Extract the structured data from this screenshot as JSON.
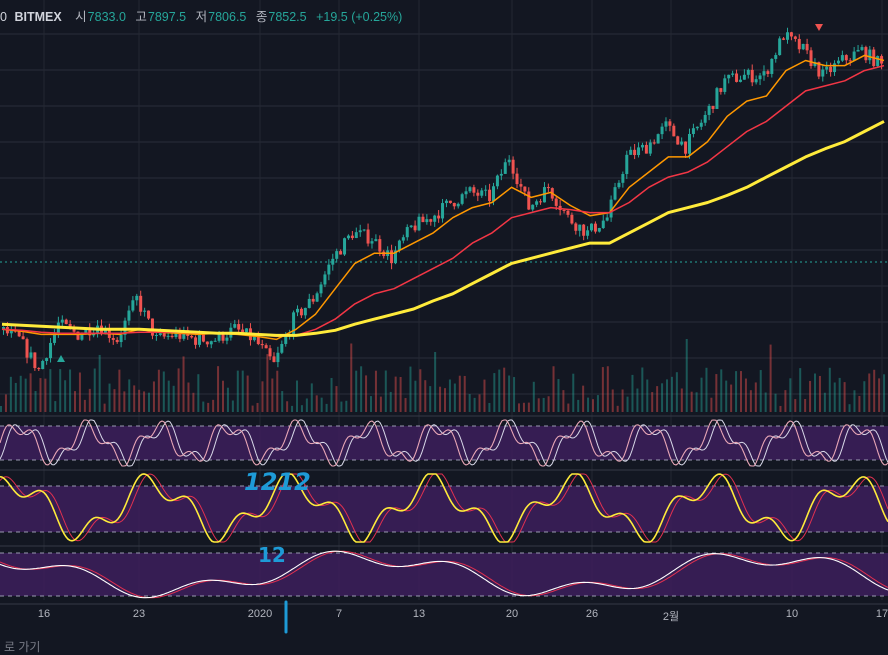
{
  "header": {
    "prefix": "0",
    "exchange": "BITMEX",
    "open_label": "시",
    "open": "7833.0",
    "high_label": "고",
    "high": "7897.5",
    "low_label": "저",
    "low": "7806.5",
    "close_label": "종",
    "close": "7852.5",
    "change": "+19.5 (+0.25%)"
  },
  "x_ticks": [
    "16",
    "23",
    "2020",
    "7",
    "13",
    "20",
    "26",
    "2월",
    "10",
    "17"
  ],
  "footer_text": "로 가기",
  "annotations": {
    "top": "1212",
    "mid": "12"
  },
  "colors": {
    "background": "#131722",
    "up": "#26a69a",
    "down": "#ef5350",
    "ma_fast": "#ff9800",
    "ma_mid": "#f23645",
    "ma_slow": "#ffeb3b",
    "oscillator_band": "#3d1f5c",
    "annotation": "#1e9bd7"
  },
  "chart_data": {
    "type": "candlestick",
    "series": [
      {
        "name": "",
        "close": [
          7300,
          7200,
          6900,
          7350,
          7250,
          7350,
          7200,
          7600,
          7200,
          7250,
          7200,
          7200,
          7300,
          7200,
          6950,
          7400,
          7600,
          8000,
          8250,
          8200,
          8000,
          8300,
          8400,
          8550,
          8650,
          8600,
          9000,
          8500,
          8700,
          8400,
          8250,
          8400,
          9000,
          9100,
          9300,
          9100,
          9400,
          9750,
          9800,
          9800,
          10200,
          10050,
          9800,
          9950,
          10050,
          9900
        ]
      },
      {
        "name": "",
        "values": [
          7300,
          7280,
          7250,
          7250,
          7250,
          7260,
          7250,
          7300,
          7270,
          7260,
          7250,
          7260,
          7250,
          7230,
          7200,
          7300,
          7450,
          7700,
          7950,
          8050,
          8050,
          8150,
          8250,
          8400,
          8500,
          8550,
          8700,
          8600,
          8650,
          8520,
          8420,
          8450,
          8700,
          8850,
          9000,
          9000,
          9150,
          9400,
          9550,
          9600,
          9850,
          9950,
          9900,
          9900,
          10000,
          9950
        ]
      },
      {
        "name": "",
        "values": [
          7300,
          7290,
          7270,
          7260,
          7260,
          7260,
          7260,
          7270,
          7270,
          7270,
          7260,
          7260,
          7260,
          7250,
          7230,
          7240,
          7300,
          7400,
          7550,
          7650,
          7700,
          7800,
          7900,
          8000,
          8150,
          8250,
          8400,
          8450,
          8500,
          8480,
          8450,
          8450,
          8550,
          8700,
          8800,
          8850,
          8950,
          9100,
          9250,
          9350,
          9500,
          9650,
          9700,
          9750,
          9850,
          9900
        ]
      },
      {
        "name": "",
        "values": [
          7350,
          7340,
          7330,
          7320,
          7310,
          7300,
          7300,
          7300,
          7290,
          7280,
          7270,
          7260,
          7260,
          7250,
          7240,
          7240,
          7260,
          7290,
          7350,
          7400,
          7450,
          7500,
          7580,
          7650,
          7750,
          7850,
          7950,
          8000,
          8050,
          8100,
          8150,
          8150,
          8250,
          8350,
          8450,
          8500,
          8550,
          8620,
          8700,
          8800,
          8900,
          9000,
          9080,
          9150,
          9250,
          9350
        ]
      }
    ],
    "ylim": [
      6800,
      10300
    ]
  }
}
